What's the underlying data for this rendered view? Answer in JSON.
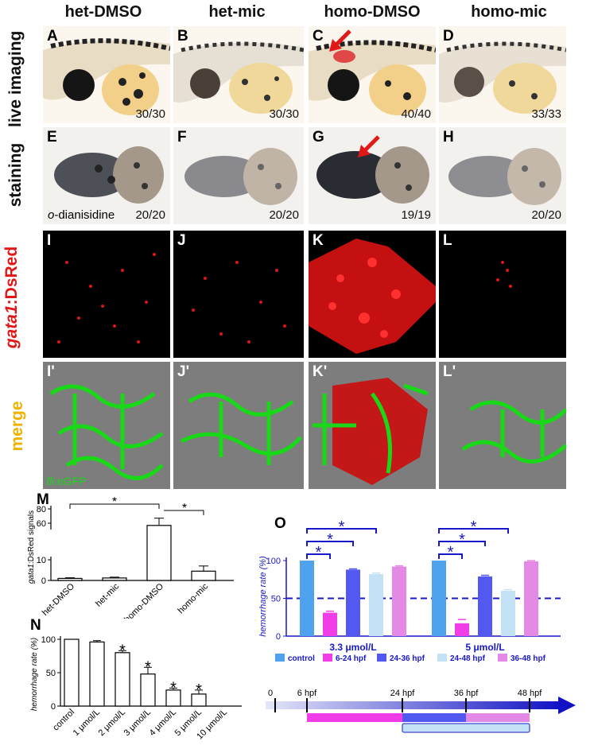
{
  "columns": [
    "het-DMSO",
    "het-mic",
    "homo-DMSO",
    "homo-mic"
  ],
  "rows": {
    "live": "live imaging",
    "staining": "staining"
  },
  "panels": {
    "live": [
      {
        "letter": "A",
        "count": "30/30"
      },
      {
        "letter": "B",
        "count": "30/30"
      },
      {
        "letter": "C",
        "count": "40/40"
      },
      {
        "letter": "D",
        "count": "33/33"
      }
    ],
    "staining": [
      {
        "letter": "E",
        "count": "20/20"
      },
      {
        "letter": "F",
        "count": "20/20"
      },
      {
        "letter": "G",
        "count": "19/19"
      },
      {
        "letter": "H",
        "count": "20/20"
      }
    ],
    "gata": [
      {
        "letter": "I"
      },
      {
        "letter": "J"
      },
      {
        "letter": "K"
      },
      {
        "letter": "L"
      }
    ],
    "merge": [
      {
        "letter": "I'"
      },
      {
        "letter": "J'"
      },
      {
        "letter": "K'"
      },
      {
        "letter": "L'"
      }
    ]
  },
  "stain_label": "o-dianisidine",
  "gata_row_label": {
    "italic": "gata1",
    "rest": ":DsRed"
  },
  "merge_row_label": "merge",
  "fli_label": {
    "italic": "fli",
    "rest": ":eGFP"
  },
  "chart_data": [
    {
      "panel": "M",
      "type": "bar",
      "categories": [
        "het-DMSO",
        "het-mic",
        "homo-DMSO",
        "homo-mic"
      ],
      "values": [
        1,
        1.2,
        55,
        4.5
      ],
      "errors": [
        0.3,
        0.4,
        12,
        2.5
      ],
      "ylabel_italic": "gata1",
      "ylabel_rest": ":DsRed signals",
      "yticks": [
        "0",
        "10",
        "60",
        "80"
      ],
      "broken_axis": true,
      "significance": [
        {
          "from": "het-DMSO",
          "to": "homo-DMSO",
          "label": "*"
        },
        {
          "from": "homo-DMSO",
          "to": "homo-mic",
          "label": "*"
        }
      ]
    },
    {
      "panel": "N",
      "type": "bar",
      "categories": [
        "control",
        "1 μmol/L",
        "2 μmol/L",
        "3 μmol/L",
        "4 μmol/L",
        "5 μmol/L",
        "10 μmol/L"
      ],
      "values": [
        100,
        96,
        80,
        48,
        24,
        18,
        0
      ],
      "errors": [
        0,
        2,
        3,
        10,
        3,
        6,
        0
      ],
      "ylabel": "hemorrhage rate (%)",
      "ylim": [
        0,
        100
      ],
      "yticks": [
        "0",
        "50",
        "100"
      ],
      "stars": [
        "",
        "",
        "*",
        "*",
        "*",
        "*",
        ""
      ]
    },
    {
      "panel": "O",
      "type": "bar",
      "groups": [
        "3.3 μmol/L",
        "5 μmol/L"
      ],
      "series": [
        {
          "name": "control",
          "color": "#4fa3ee",
          "values": [
            100,
            100
          ],
          "errors": [
            0,
            0
          ]
        },
        {
          "name": "6-24 hpf",
          "color": "#f03de8",
          "values": [
            31,
            17
          ],
          "errors": [
            2,
            5
          ]
        },
        {
          "name": "24-36 hpf",
          "color": "#5258f0",
          "values": [
            88,
            79
          ],
          "errors": [
            1,
            1.5
          ]
        },
        {
          "name": "24-48 hpf",
          "color": "#c4e2f6",
          "values": [
            82,
            60
          ],
          "errors": [
            1.5,
            1.5
          ]
        },
        {
          "name": "36-48 hpf",
          "color": "#e48ae6",
          "values": [
            92,
            99
          ],
          "errors": [
            1,
            1
          ]
        }
      ],
      "ylabel": "hemorrhage rate (%)",
      "ylim": [
        0,
        100
      ],
      "yticks": [
        "0",
        "50",
        "100"
      ],
      "reference_line": 50,
      "significance_label": "*"
    }
  ],
  "timeline": {
    "ticks": [
      "0",
      "6 hpf",
      "24 hpf",
      "36 hpf",
      "48 hpf"
    ],
    "tick_hours": [
      0,
      6,
      24,
      36,
      48
    ]
  },
  "panel_letters": {
    "M": "M",
    "N": "N",
    "O": "O"
  }
}
